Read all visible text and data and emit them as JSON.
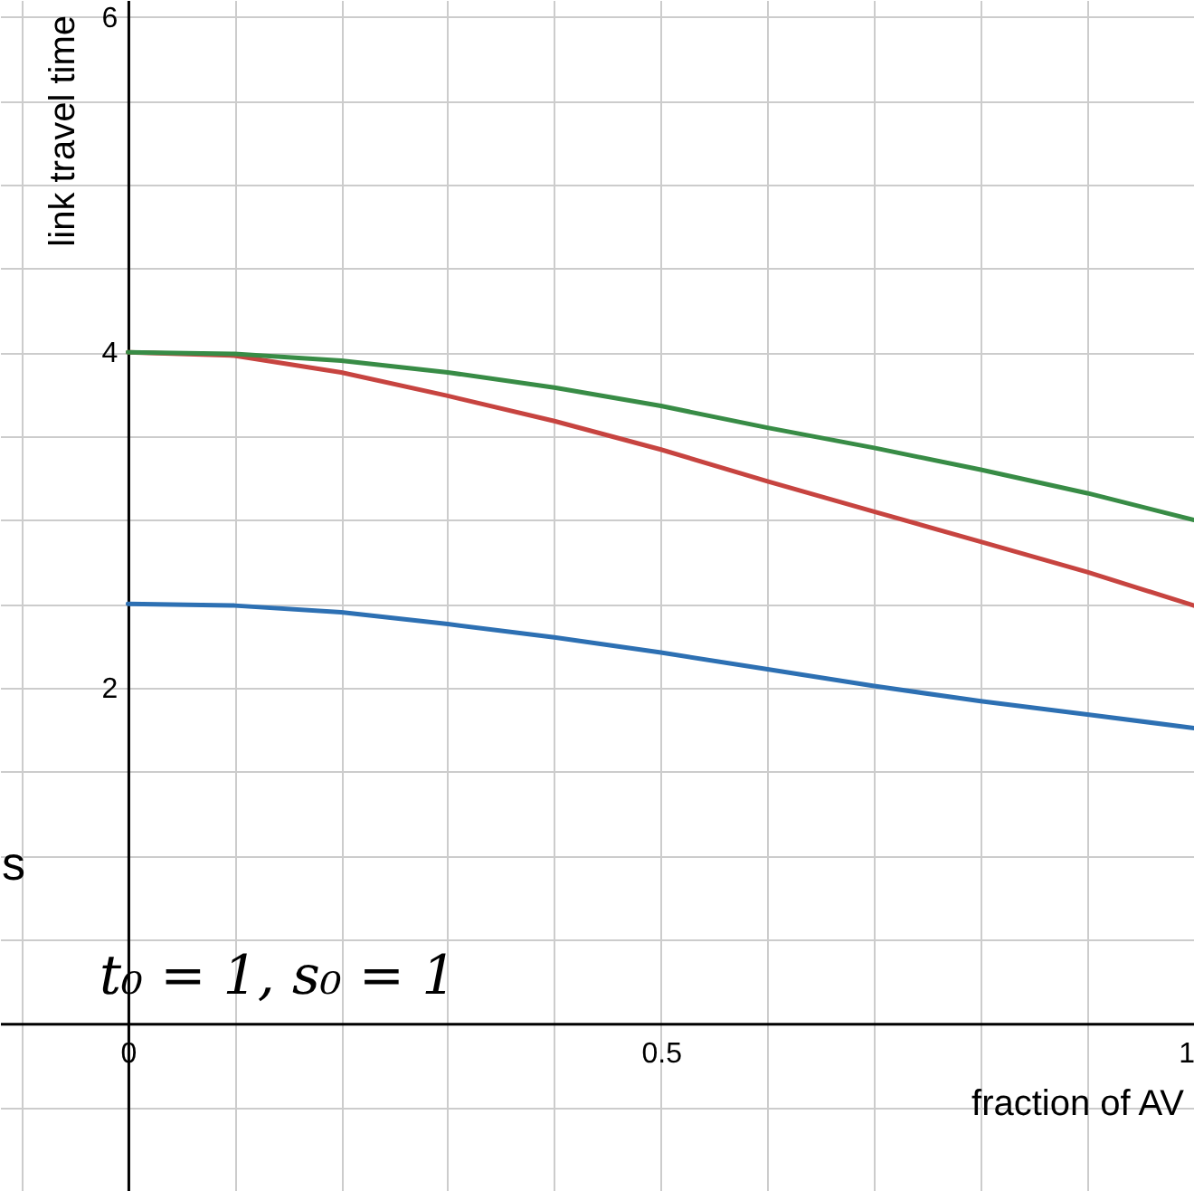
{
  "chart_data": {
    "type": "line",
    "xlabel": "fraction of AV",
    "ylabel": "link travel time",
    "x": [
      0,
      0.1,
      0.2,
      0.3,
      0.4,
      0.5,
      0.6,
      0.7,
      0.8,
      0.9,
      1.0
    ],
    "series": [
      {
        "color": "#2d70b3",
        "values": [
          2.5,
          2.49,
          2.45,
          2.38,
          2.3,
          2.21,
          2.11,
          2.01,
          1.92,
          1.84,
          1.76
        ]
      },
      {
        "color": "#c74440",
        "values": [
          4,
          3.98,
          3.88,
          3.74,
          3.59,
          3.42,
          3.23,
          3.05,
          2.87,
          2.69,
          2.49
        ]
      },
      {
        "color": "#388c46",
        "values": [
          4,
          3.99,
          3.95,
          3.88,
          3.79,
          3.68,
          3.55,
          3.43,
          3.3,
          3.16,
          3.0
        ]
      }
    ],
    "xlim": [
      -0.12,
      1.0
    ],
    "ylim": [
      -1,
      6.1
    ],
    "xticks": [
      {
        "value": -0.1,
        "label": null
      },
      0,
      {
        "value": 0.1,
        "label": null
      },
      {
        "value": 0.2,
        "label": null
      },
      {
        "value": 0.3,
        "label": null
      },
      {
        "value": 0.4,
        "label": null
      },
      0.5,
      {
        "value": 0.6,
        "label": null
      },
      {
        "value": 0.7,
        "label": null
      },
      {
        "value": 0.8,
        "label": null
      },
      {
        "value": 0.9,
        "label": null
      },
      1
    ],
    "yticks": [
      {
        "value": -0.5,
        "label": null
      },
      {
        "value": 0.5,
        "label": null
      },
      {
        "value": 1,
        "label": null
      },
      {
        "value": 1.5,
        "label": null
      },
      2,
      {
        "value": 2.5,
        "label": null
      },
      {
        "value": 3,
        "label": null
      },
      {
        "value": 3.5,
        "label": null
      },
      4,
      {
        "value": 4.5,
        "label": null
      },
      {
        "value": 5,
        "label": null
      },
      {
        "value": 5.5,
        "label": null
      },
      6
    ],
    "grid": true,
    "line_style": "solid",
    "marker": "none",
    "annotations": [
      "t₀ = 1, s₀ = 1",
      "s"
    ]
  }
}
